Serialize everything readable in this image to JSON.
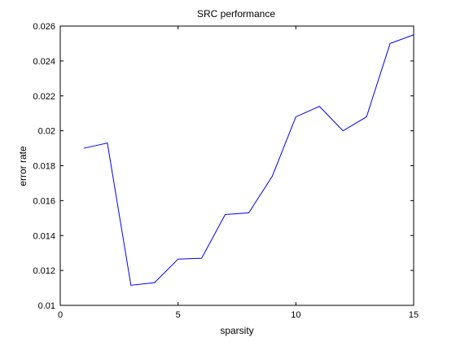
{
  "chart_data": {
    "type": "line",
    "title": "SRC performance",
    "xlabel": "sparsity",
    "ylabel": "error rate",
    "xlim": [
      0,
      15
    ],
    "ylim": [
      0.01,
      0.026
    ],
    "xticks": [
      "0",
      "5",
      "10",
      "15"
    ],
    "xtick_values": [
      0,
      5,
      10,
      15
    ],
    "yticks": [
      "0.01",
      "0.012",
      "0.014",
      "0.016",
      "0.018",
      "0.02",
      "0.022",
      "0.024",
      "0.026"
    ],
    "ytick_values": [
      0.01,
      0.012,
      0.014,
      0.016,
      0.018,
      0.02,
      0.022,
      0.024,
      0.026
    ],
    "grid": false,
    "series": [
      {
        "color": "#0000ff",
        "x": [
          1,
          2,
          3,
          4,
          5,
          6,
          7,
          8,
          9,
          10,
          11,
          12,
          13,
          14,
          15
        ],
        "y": [
          0.019,
          0.0193,
          0.01115,
          0.0113,
          0.01265,
          0.0127,
          0.0152,
          0.0153,
          0.0174,
          0.0208,
          0.0214,
          0.02,
          0.0208,
          0.025,
          0.0255
        ]
      }
    ]
  }
}
